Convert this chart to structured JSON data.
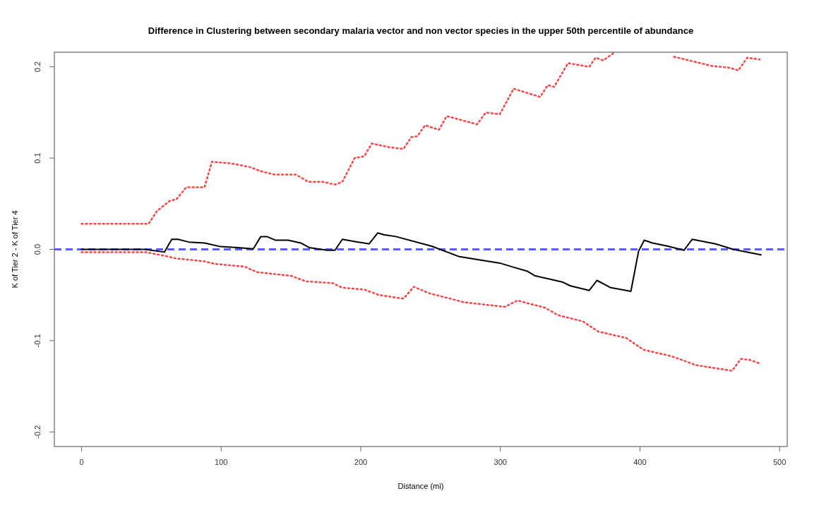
{
  "chart_data": {
    "type": "line",
    "title": "Difference in Clustering between secondary malaria vector and non vector species in the upper 50th percentile of abundance",
    "xlabel": "Distance (mi)",
    "ylabel": "K of Tier 2 - K of Tier 4",
    "xlim": [
      -19.5,
      505.5
    ],
    "ylim": [
      -0.216,
      0.216
    ],
    "xticks": [
      0,
      100,
      200,
      300,
      400,
      500
    ],
    "yticks": [
      {
        "value": -0.2,
        "label": "-0.2"
      },
      {
        "value": -0.1,
        "label": "-0.1"
      },
      {
        "value": 0,
        "label": "0.0"
      },
      {
        "value": 0.1,
        "label": "0.1"
      },
      {
        "value": 0.2,
        "label": "0.2"
      }
    ],
    "grid": false,
    "ref_lines": [
      {
        "axis": "y",
        "value": 0,
        "color": "#5b5bff",
        "line_style": "dashed"
      }
    ],
    "series": [
      {
        "color": "#ff4040",
        "line_style": "dotted",
        "x": [
          0,
          48,
          54,
          63,
          68,
          75,
          88,
          93.4,
          108,
          121,
          127.5,
          138,
          153.5,
          162.4,
          172.8,
          181.6,
          186.8,
          195.6,
          202.5,
          207.9,
          220,
          230.5,
          236.3,
          240.6,
          246.2,
          256,
          261.6,
          283.3,
          289.6,
          299.6,
          309.5,
          328.5,
          334,
          338.5,
          348.4,
          363.7,
          368.2,
          373.7,
          381,
          395,
          411.7,
          424.4,
          437.9,
          451.4,
          464,
          470.5,
          476.8,
          485.8
        ],
        "values": [
          0.028,
          0.028,
          0.042,
          0.053,
          0.055,
          0.068,
          0.068,
          0.096,
          0.094,
          0.09,
          0.086,
          0.082,
          0.082,
          0.074,
          0.074,
          0.071,
          0.074,
          0.1,
          0.102,
          0.116,
          0.112,
          0.11,
          0.123,
          0.124,
          0.136,
          0.131,
          0.146,
          0.137,
          0.15,
          0.148,
          0.176,
          0.167,
          0.18,
          0.178,
          0.204,
          0.2,
          0.21,
          0.207,
          0.215,
          null,
          null,
          0.211,
          0.206,
          0.201,
          0.199,
          0.196,
          0.21,
          0.208
        ]
      },
      {
        "color": "#000000",
        "line_style": "solid",
        "x": [
          0,
          45.4,
          59.3,
          64.6,
          69,
          76.9,
          88.2,
          99.5,
          111.7,
          123,
          128.4,
          132.8,
          139,
          148,
          157,
          163,
          176,
          181.5,
          186.8,
          193.8,
          206,
          212.2,
          216.5,
          225.2,
          250.8,
          270.6,
          286.9,
          299.5,
          310.4,
          319.4,
          324.9,
          333.9,
          344.8,
          350.2,
          363.7,
          369.2,
          379.1,
          393.5,
          399,
          403.1,
          409,
          420,
          431.5,
          437.4,
          454.2,
          466.8,
          486.7
        ],
        "values": [
          0,
          0,
          -0.003,
          0.011,
          0.011,
          0.008,
          0.007,
          0.003,
          0.002,
          0.0005,
          0.014,
          0.014,
          0.01,
          0.01,
          0.007,
          0.002,
          -0.001,
          -0.001,
          0.011,
          0.009,
          0.006,
          0.018,
          0.016,
          0.014,
          0.0035,
          -0.008,
          -0.012,
          -0.015,
          -0.02,
          -0.024,
          -0.029,
          -0.032,
          -0.036,
          -0.04,
          -0.045,
          -0.034,
          -0.042,
          -0.046,
          -0.002,
          0.01,
          0.007,
          0.0035,
          -0.001,
          0.011,
          0.006,
          0,
          -0.006
        ]
      },
      {
        "color": "#ff4040",
        "line_style": "dotted",
        "x": [
          0,
          45.5,
          59.3,
          68,
          87.3,
          96,
          117,
          125.7,
          150.2,
          160.6,
          179.8,
          186.8,
          202.5,
          213,
          230.5,
          238,
          248.9,
          274.2,
          303.2,
          312.2,
          332.1,
          341.2,
          359.2,
          370.1,
          390,
          402.6,
          422.5,
          440.6,
          466,
          472.3,
          478.5,
          485.8
        ],
        "values": [
          -0.003,
          -0.003,
          -0.007,
          -0.01,
          -0.013,
          -0.016,
          -0.019,
          -0.025,
          -0.029,
          -0.035,
          -0.037,
          -0.042,
          -0.044,
          -0.05,
          -0.054,
          -0.041,
          -0.048,
          -0.058,
          -0.063,
          -0.056,
          -0.064,
          -0.072,
          -0.079,
          -0.09,
          -0.097,
          -0.11,
          -0.117,
          -0.127,
          -0.133,
          -0.12,
          -0.121,
          -0.125
        ]
      }
    ]
  }
}
